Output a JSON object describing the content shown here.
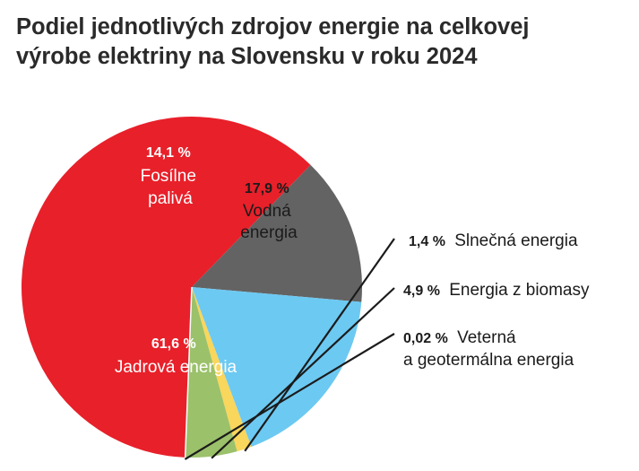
{
  "chart_data": {
    "type": "pie",
    "title_lines": [
      "Podiel jednotlivých zdrojov energie na celkovej",
      "výrobe elektriny na Slovensku v roku 2024"
    ],
    "slices": [
      {
        "name_lines": [
          "Jadrová energia"
        ],
        "value": 61.6,
        "value_label": "61,6 %",
        "color": "#e8202a"
      },
      {
        "name_lines": [
          "Fosílne",
          "palivá"
        ],
        "value": 14.1,
        "value_label": "14,1 %",
        "color": "#636363"
      },
      {
        "name_lines": [
          "Vodná",
          "energia"
        ],
        "value": 17.9,
        "value_label": "17,9 %",
        "color": "#6cc9f2"
      },
      {
        "name_lines": [
          "Slnečná energia"
        ],
        "value": 1.4,
        "value_label": "1,4 %",
        "color": "#f9d65c"
      },
      {
        "name_lines": [
          "Energia z biomasy"
        ],
        "value": 4.9,
        "value_label": "4,9 %",
        "color": "#9bc16b"
      },
      {
        "name_lines": [
          "Veterná",
          "a geotermálna energia"
        ],
        "value": 0.02,
        "value_label": "0,02 %",
        "color": "#d8d8d8"
      }
    ]
  }
}
